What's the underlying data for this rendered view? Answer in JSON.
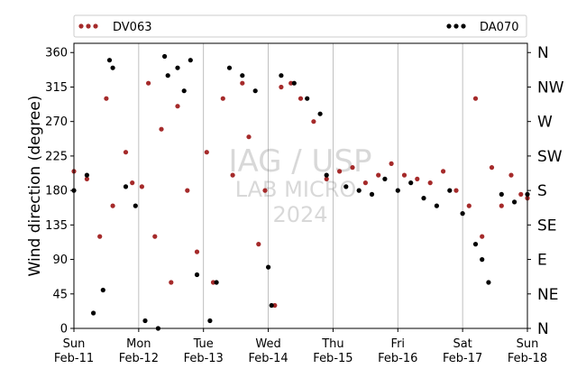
{
  "chart_data": {
    "type": "scatter",
    "title": "",
    "xlabel": "",
    "ylabel": "Wind direction (degree)",
    "x_range": [
      "2024-02-11 00:00",
      "2024-02-18 00:00"
    ],
    "ylim": [
      0,
      365
    ],
    "y_ticks": [
      0,
      45,
      90,
      135,
      180,
      225,
      270,
      315,
      360
    ],
    "x_ticks": [
      {
        "day": "Sun",
        "date": "Feb-11"
      },
      {
        "day": "Mon",
        "date": "Feb-12"
      },
      {
        "day": "Tue",
        "date": "Feb-13"
      },
      {
        "day": "Wed",
        "date": "Feb-14"
      },
      {
        "day": "Thu",
        "date": "Feb-15"
      },
      {
        "day": "Fri",
        "date": "Feb-16"
      },
      {
        "day": "Sat",
        "date": "Feb-17"
      },
      {
        "day": "Sun",
        "date": "Feb-18"
      }
    ],
    "right_axis_labels": [
      {
        "label": "N",
        "value": 0
      },
      {
        "label": "NE",
        "value": 45
      },
      {
        "label": "E",
        "value": 90
      },
      {
        "label": "SE",
        "value": 135
      },
      {
        "label": "S",
        "value": 180
      },
      {
        "label": "SW",
        "value": 225
      },
      {
        "label": "W",
        "value": 270
      },
      {
        "label": "NW",
        "value": 315
      },
      {
        "label": "N",
        "value": 360
      }
    ],
    "grid": "vertical at day boundaries",
    "legend_position": "top (above plot, spanning width)",
    "watermark": [
      "IAG / USP",
      "LAB MICRO",
      "2024"
    ],
    "series": [
      {
        "name": "DV063",
        "color": "#a52a2a",
        "x_days": [
          0.0,
          0.2,
          0.4,
          0.5,
          0.6,
          0.8,
          0.9,
          1.05,
          1.15,
          1.25,
          1.35,
          1.5,
          1.6,
          1.75,
          1.9,
          2.05,
          2.15,
          2.3,
          2.45,
          2.6,
          2.7,
          2.85,
          2.95,
          3.1,
          3.2,
          3.35,
          3.5,
          3.7,
          3.9,
          4.1,
          4.3,
          4.5,
          4.7,
          4.9,
          5.1,
          5.3,
          5.5,
          5.7,
          5.9,
          6.1,
          6.2,
          6.3,
          6.45,
          6.6,
          6.75,
          6.9,
          7.0
        ],
        "y": [
          205,
          195,
          120,
          300,
          160,
          230,
          190,
          185,
          320,
          120,
          260,
          60,
          290,
          180,
          100,
          230,
          60,
          300,
          200,
          320,
          250,
          110,
          180,
          30,
          315,
          320,
          300,
          270,
          195,
          205,
          210,
          190,
          200,
          215,
          200,
          195,
          190,
          205,
          180,
          160,
          300,
          120,
          210,
          160,
          200,
          175,
          170
        ]
      },
      {
        "name": "DA070",
        "color": "#000000",
        "x_days": [
          0.0,
          0.2,
          0.3,
          0.45,
          0.55,
          0.6,
          0.8,
          0.95,
          1.1,
          1.3,
          1.4,
          1.45,
          1.6,
          1.7,
          1.8,
          1.9,
          2.1,
          2.2,
          2.4,
          2.6,
          2.8,
          3.0,
          3.05,
          3.2,
          3.4,
          3.6,
          3.8,
          3.9,
          4.2,
          4.4,
          4.6,
          4.8,
          5.0,
          5.2,
          5.4,
          5.6,
          5.8,
          6.0,
          6.2,
          6.3,
          6.4,
          6.6,
          6.8,
          7.0
        ],
        "y": [
          180,
          200,
          20,
          50,
          350,
          340,
          185,
          160,
          10,
          0,
          355,
          330,
          340,
          310,
          350,
          70,
          10,
          60,
          340,
          330,
          310,
          80,
          30,
          330,
          320,
          300,
          280,
          200,
          185,
          180,
          175,
          195,
          180,
          190,
          170,
          160,
          180,
          150,
          110,
          90,
          60,
          175,
          165,
          175
        ]
      }
    ]
  }
}
